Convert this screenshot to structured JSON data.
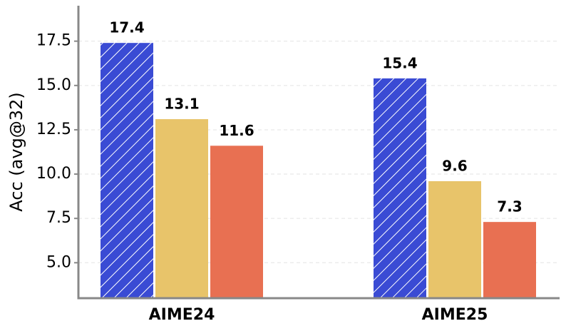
{
  "chart_data": {
    "type": "bar",
    "y_label": "Acc (avg@32)",
    "categories": [
      "AIME24",
      "AIME25"
    ],
    "series": [
      {
        "color": "#3a4bd4",
        "hatch": true,
        "values": [
          17.4,
          15.4
        ]
      },
      {
        "color": "#e8c46a",
        "hatch": false,
        "values": [
          13.1,
          9.6
        ]
      },
      {
        "color": "#e87052",
        "hatch": false,
        "values": [
          11.6,
          7.3
        ]
      }
    ],
    "ylim": [
      3,
      19.5
    ],
    "yticks": [
      {
        "value": 5,
        "label": "5.0"
      },
      7.5,
      {
        "value": 10,
        "label": "10.0"
      },
      12.5,
      {
        "value": 15,
        "label": "15.0"
      },
      17.5
    ],
    "grid": true
  }
}
